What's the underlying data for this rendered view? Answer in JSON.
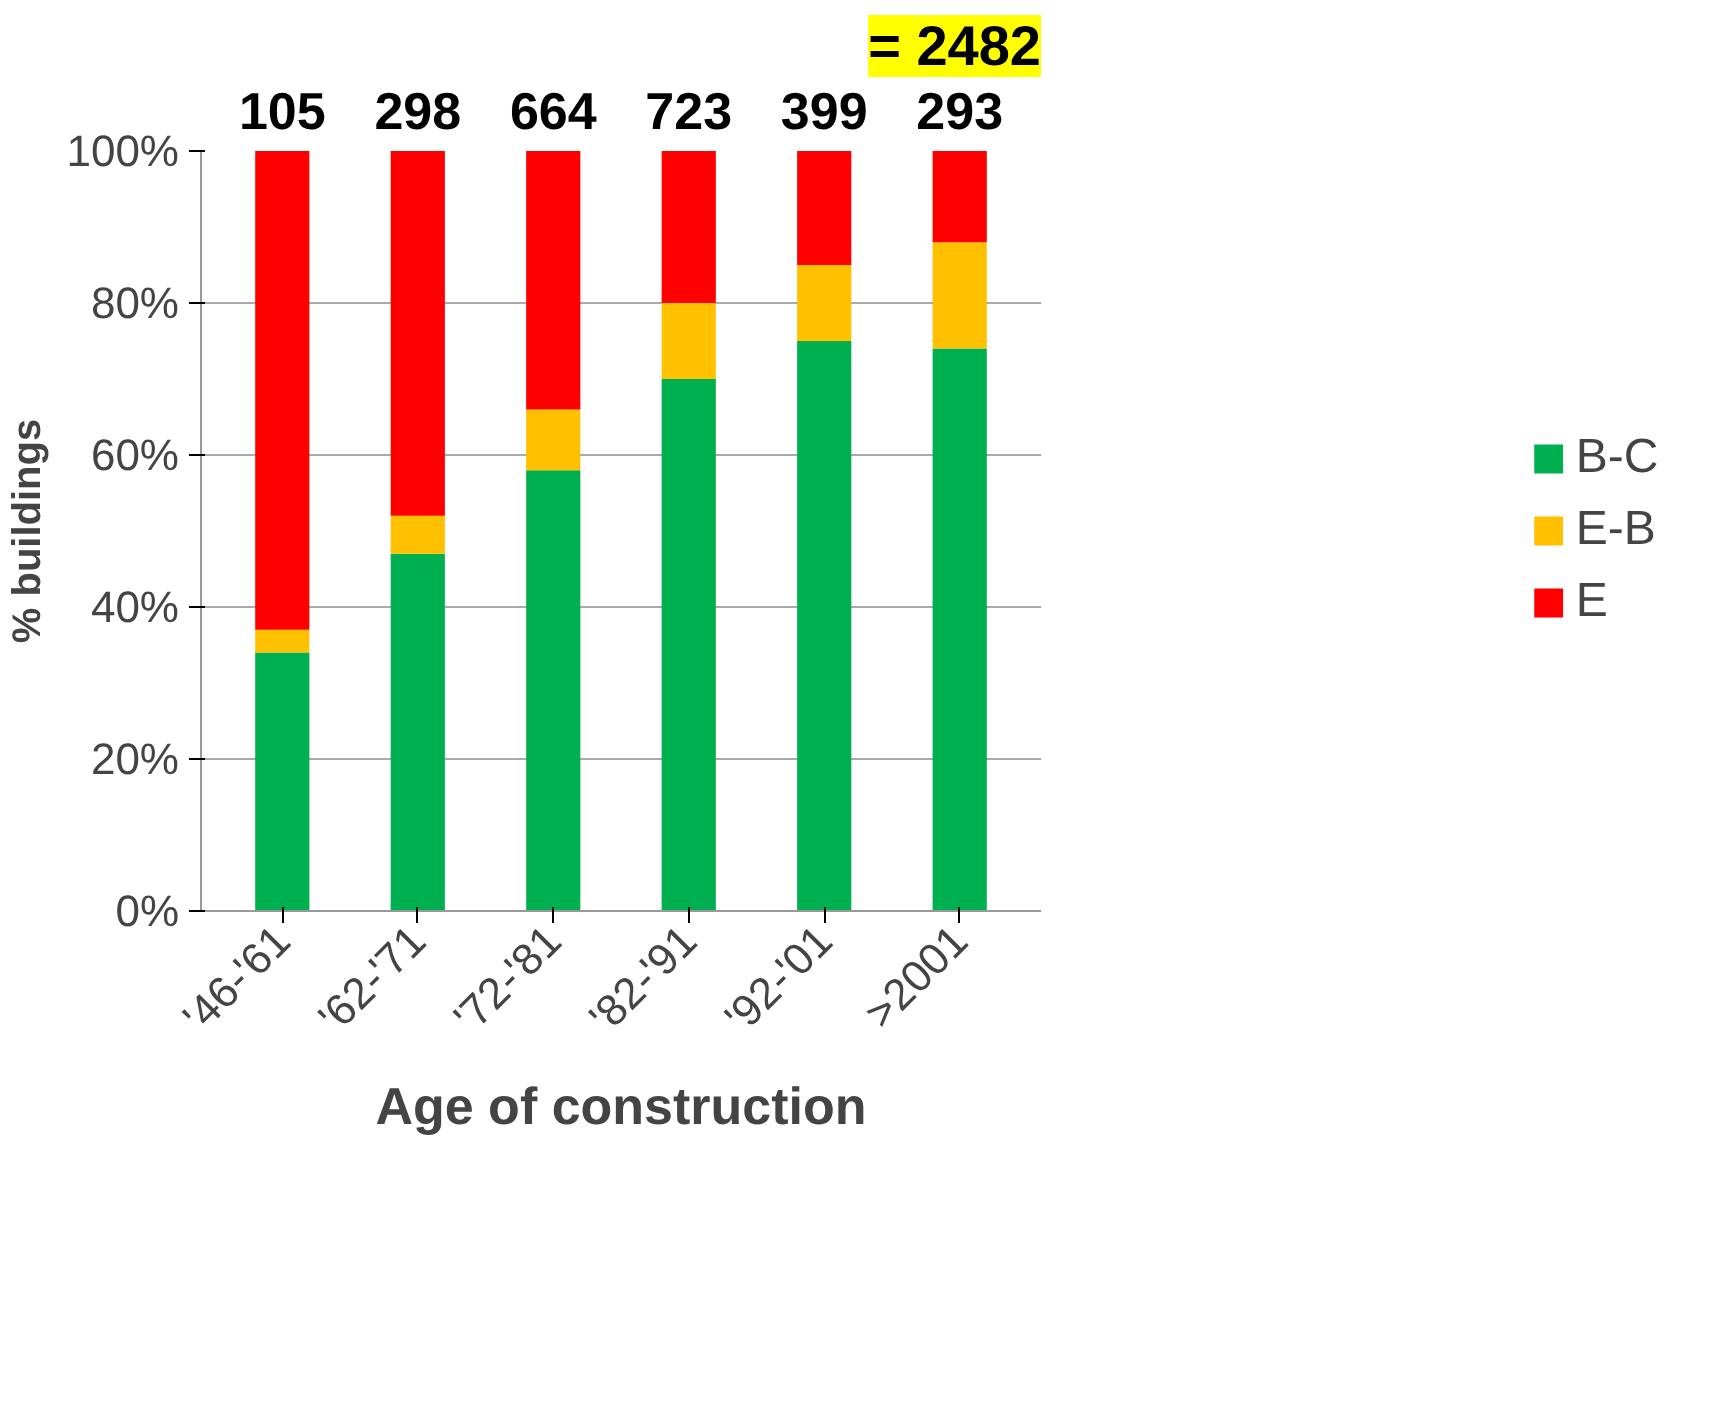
{
  "chart_data": {
    "type": "bar",
    "stacked": true,
    "xlabel": "Age of construction",
    "ylabel": "% buildings",
    "categories": [
      "'46-'61",
      "'62-'71",
      "'72-'81",
      "'82-'91",
      "'92-'01",
      ">2001"
    ],
    "series": [
      {
        "name": "B-C",
        "color": "#00b050",
        "values": [
          34,
          47,
          58,
          70,
          75,
          74
        ]
      },
      {
        "name": "E-B",
        "color": "#ffc000",
        "values": [
          3,
          5,
          8,
          10,
          10,
          14
        ]
      },
      {
        "name": "E",
        "color": "#ff0000",
        "values": [
          63,
          48,
          34,
          20,
          15,
          12
        ]
      }
    ],
    "annotations": [
      "105",
      "298",
      "664",
      "723",
      "399",
      "293",
      "= 2482"
    ],
    "ylim": [
      0,
      100
    ],
    "yticks": [
      {
        "value": 0,
        "label": "0%"
      },
      {
        "value": 20,
        "label": "20%"
      },
      {
        "value": 40,
        "label": "40%"
      },
      {
        "value": 60,
        "label": "60%"
      },
      {
        "value": 80,
        "label": "80%"
      },
      {
        "value": 100,
        "label": "100%"
      }
    ],
    "grid": "y",
    "legend": "right"
  }
}
